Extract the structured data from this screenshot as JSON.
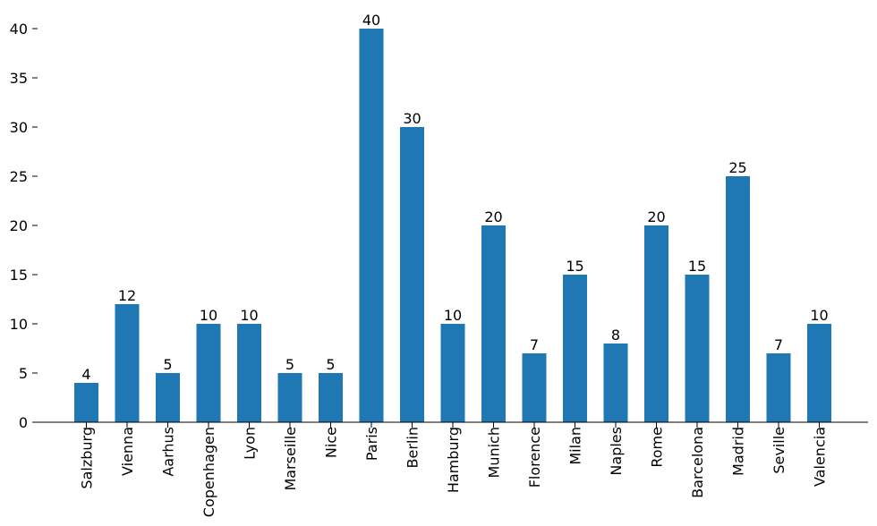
{
  "chart_data": {
    "type": "bar",
    "categories": [
      "Salzburg",
      "Vienna",
      "Aarhus",
      "Copenhagen",
      "Lyon",
      "Marseille",
      "Nice",
      "Paris",
      "Berlin",
      "Hamburg",
      "Munich",
      "Florence",
      "Milan",
      "Naples",
      "Rome",
      "Barcelona",
      "Madrid",
      "Seville",
      "Valencia"
    ],
    "values": [
      4,
      12,
      5,
      10,
      10,
      5,
      5,
      40,
      30,
      10,
      20,
      7,
      15,
      8,
      20,
      15,
      25,
      7,
      10
    ],
    "ylim": [
      0,
      40
    ],
    "yticks": [
      0,
      5,
      10,
      15,
      20,
      25,
      30,
      35,
      40
    ],
    "bar_color": "#1f77b4",
    "title": "",
    "xlabel": "",
    "ylabel": "",
    "grid": false,
    "data_labels": true
  }
}
